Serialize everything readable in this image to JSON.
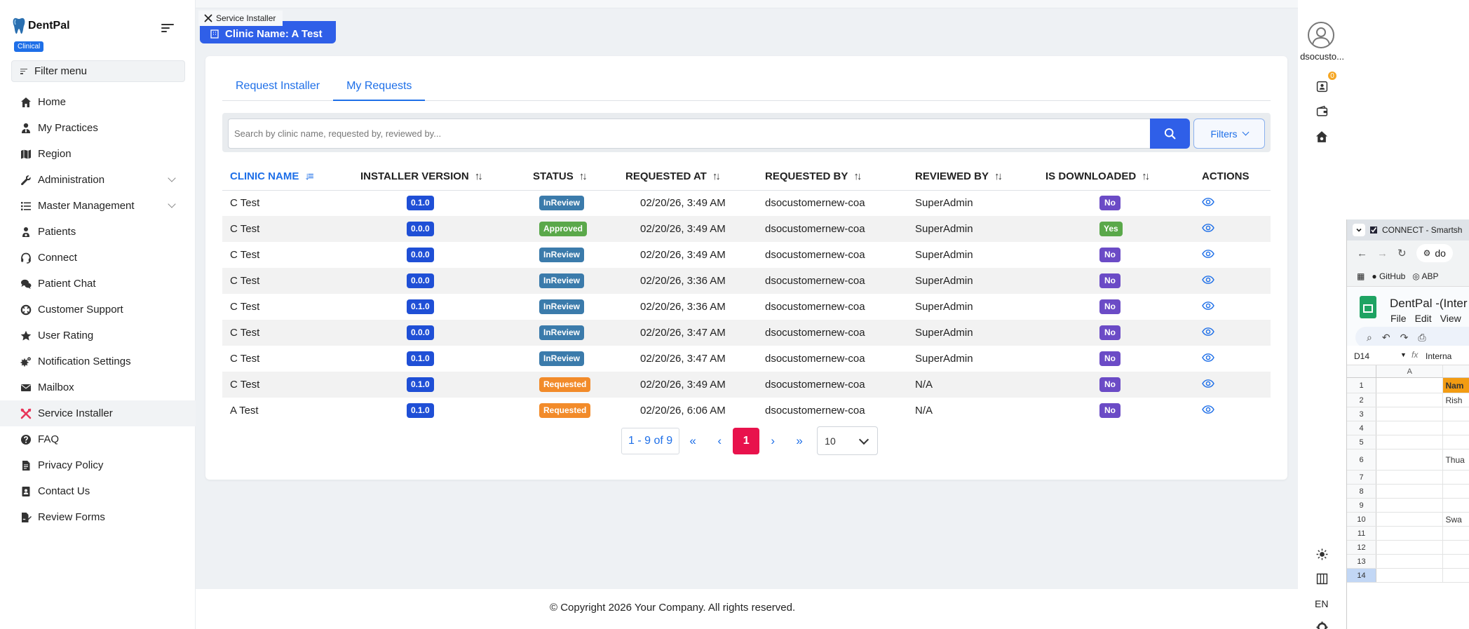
{
  "brand": {
    "name": "DentPal",
    "badge": "Clinical"
  },
  "sidebar": {
    "filter_label": "Filter menu",
    "items": [
      {
        "label": "Home",
        "icon": "home-icon"
      },
      {
        "label": "My Practices",
        "icon": "user-tie-icon"
      },
      {
        "label": "Region",
        "icon": "map-icon"
      },
      {
        "label": "Administration",
        "icon": "wrench-icon",
        "expandable": true
      },
      {
        "label": "Master Management",
        "icon": "list-icon",
        "expandable": true
      },
      {
        "label": "Patients",
        "icon": "patient-icon"
      },
      {
        "label": "Connect",
        "icon": "headset-icon"
      },
      {
        "label": "Patient Chat",
        "icon": "chat-icon"
      },
      {
        "label": "Customer Support",
        "icon": "support-icon"
      },
      {
        "label": "User Rating",
        "icon": "star-icon"
      },
      {
        "label": "Notification Settings",
        "icon": "cogs-icon"
      },
      {
        "label": "Mailbox",
        "icon": "envelope-icon"
      },
      {
        "label": "Service Installer",
        "icon": "tools-icon",
        "active": true
      },
      {
        "label": "FAQ",
        "icon": "question-icon"
      },
      {
        "label": "Privacy Policy",
        "icon": "document-icon"
      },
      {
        "label": "Contact Us",
        "icon": "address-book-icon"
      },
      {
        "label": "Review Forms",
        "icon": "file-signature-icon"
      }
    ]
  },
  "header": {
    "tab_title": "Service Installer",
    "clinic_label": "Clinic Name: A Test"
  },
  "tabs": [
    {
      "label": "Request Installer",
      "active": false
    },
    {
      "label": "My Requests",
      "active": true
    }
  ],
  "search": {
    "placeholder": "Search by clinic name, requested by, reviewed by...",
    "filters_label": "Filters"
  },
  "table": {
    "columns": [
      "CLINIC NAME",
      "INSTALLER VERSION",
      "STATUS",
      "REQUESTED AT",
      "REQUESTED BY",
      "REVIEWED BY",
      "IS DOWNLOADED",
      "ACTIONS"
    ],
    "sorted_column": "CLINIC NAME",
    "rows": [
      {
        "clinic": "C Test",
        "version": "0.1.0",
        "status": "InReview",
        "requested_at": "02/20/26, 3:49 AM",
        "requested_by": "dsocustomernew-coa",
        "reviewed_by": "SuperAdmin",
        "downloaded": "No"
      },
      {
        "clinic": "C Test",
        "version": "0.0.0",
        "status": "Approved",
        "requested_at": "02/20/26, 3:49 AM",
        "requested_by": "dsocustomernew-coa",
        "reviewed_by": "SuperAdmin",
        "downloaded": "Yes"
      },
      {
        "clinic": "C Test",
        "version": "0.0.0",
        "status": "InReview",
        "requested_at": "02/20/26, 3:49 AM",
        "requested_by": "dsocustomernew-coa",
        "reviewed_by": "SuperAdmin",
        "downloaded": "No"
      },
      {
        "clinic": "C Test",
        "version": "0.0.0",
        "status": "InReview",
        "requested_at": "02/20/26, 3:36 AM",
        "requested_by": "dsocustomernew-coa",
        "reviewed_by": "SuperAdmin",
        "downloaded": "No"
      },
      {
        "clinic": "C Test",
        "version": "0.1.0",
        "status": "InReview",
        "requested_at": "02/20/26, 3:36 AM",
        "requested_by": "dsocustomernew-coa",
        "reviewed_by": "SuperAdmin",
        "downloaded": "No"
      },
      {
        "clinic": "C Test",
        "version": "0.0.0",
        "status": "InReview",
        "requested_at": "02/20/26, 3:47 AM",
        "requested_by": "dsocustomernew-coa",
        "reviewed_by": "SuperAdmin",
        "downloaded": "No"
      },
      {
        "clinic": "C Test",
        "version": "0.1.0",
        "status": "InReview",
        "requested_at": "02/20/26, 3:47 AM",
        "requested_by": "dsocustomernew-coa",
        "reviewed_by": "SuperAdmin",
        "downloaded": "No"
      },
      {
        "clinic": "C Test",
        "version": "0.1.0",
        "status": "Requested",
        "requested_at": "02/20/26, 3:49 AM",
        "requested_by": "dsocustomernew-coa",
        "reviewed_by": "N/A",
        "downloaded": "No"
      },
      {
        "clinic": "A Test",
        "version": "0.1.0",
        "status": "Requested",
        "requested_at": "02/20/26, 6:06 AM",
        "requested_by": "dsocustomernew-coa",
        "reviewed_by": "N/A",
        "downloaded": "No"
      }
    ]
  },
  "pagination": {
    "range": "1 - 9 of 9",
    "current_page": "1",
    "page_size": "10",
    "first": "«",
    "prev": "‹",
    "next": "›",
    "last": "»"
  },
  "footer": {
    "copyright": "© Copyright 2026 Your Company. All rights reserved."
  },
  "rail": {
    "username": "dsocusto...",
    "language": "EN",
    "notification_count": "0"
  },
  "overlay_window": {
    "tab_title": "CONNECT - Smartsh",
    "url_fragment": "do",
    "bookmarks": [
      "GitHub",
      "ABP"
    ],
    "doc_title": "DentPal -(Inter",
    "menu": [
      "File",
      "Edit",
      "View"
    ],
    "cell_ref": "D14",
    "formula_text": "Interna",
    "column_a": "A",
    "rows": [
      {
        "n": "1",
        "b": "Nam"
      },
      {
        "n": "2",
        "b": "Rish"
      },
      {
        "n": "3",
        "b": ""
      },
      {
        "n": "4",
        "b": ""
      },
      {
        "n": "5",
        "b": ""
      },
      {
        "n": "6",
        "b": "Thua"
      },
      {
        "n": "7",
        "b": ""
      },
      {
        "n": "8",
        "b": ""
      },
      {
        "n": "9",
        "b": ""
      },
      {
        "n": "10",
        "b": "Swa"
      },
      {
        "n": "11",
        "b": ""
      },
      {
        "n": "12",
        "b": ""
      },
      {
        "n": "13",
        "b": ""
      },
      {
        "n": "14",
        "b": ""
      }
    ]
  },
  "colors": {
    "primary": "#1e6fe8",
    "accent_button": "#2f5fe8",
    "active_page": "#e8124c",
    "version_badge": "#1f4fd6",
    "inreview": "#3b7bab",
    "approved": "#5aa84a",
    "requested": "#f28b2a",
    "no_badge": "#6b4bc6"
  }
}
